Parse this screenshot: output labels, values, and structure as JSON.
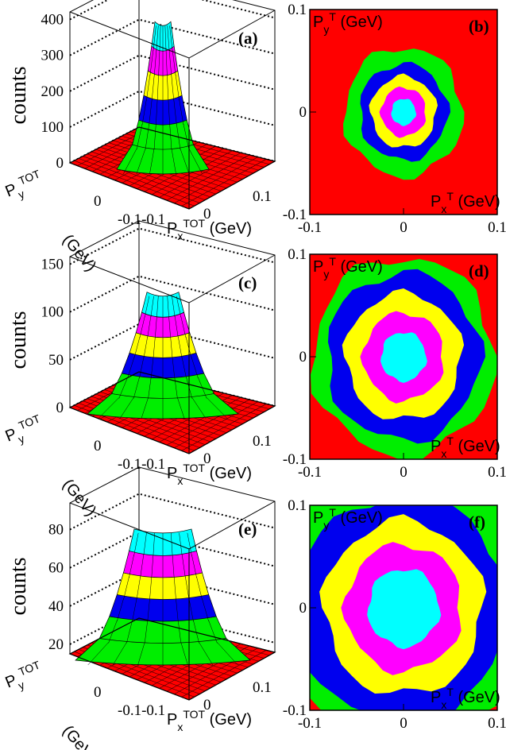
{
  "figure": {
    "colors": {
      "red": "#ff0000",
      "green": "#00ee00",
      "blue": "#0000ee",
      "yellow": "#ffff00",
      "magenta": "#ff00ff",
      "cyan": "#00ffff"
    }
  },
  "chart_data": [
    {
      "panel": "(a)",
      "type": "surface3d",
      "zlabel": "counts",
      "z_ticks": [
        "0",
        "100",
        "200",
        "300",
        "400"
      ],
      "zlim": [
        0,
        400
      ],
      "xlabel_base": "P",
      "xlabel_sub": "x",
      "xlabel_sup": "TOT",
      "xlabel_unit": "(GeV)",
      "ylabel_base": "P",
      "ylabel_sub": "y",
      "ylabel_sup": "TOT",
      "ylabel_unit": "(GeV)",
      "x_ticks": [
        "-0.1",
        "0",
        "0.1"
      ],
      "y_ticks": [
        "-0.1",
        "0",
        "0.1"
      ],
      "peak_counts": 420
    },
    {
      "panel": "(b)",
      "type": "heatmap",
      "xlim": [
        -0.1,
        0.1
      ],
      "ylim": [
        -0.1,
        0.1
      ],
      "x_ticks": [
        "-0.1",
        "0",
        "0.1"
      ],
      "y_ticks": [
        "-0.1",
        "0",
        "0.1"
      ],
      "ylabel_base": "P",
      "ylabel_sub": "y",
      "ylabel_sup": "T",
      "ylabel_unit": "(GeV)",
      "xlabel_base": "P",
      "xlabel_sub": "x",
      "xlabel_sup": "T",
      "xlabel_unit": "(GeV)",
      "contour_radii": [
        0.063,
        0.047,
        0.035,
        0.024,
        0.013
      ],
      "contour_colors": [
        "green",
        "blue",
        "yellow",
        "magenta",
        "cyan"
      ],
      "background": "red"
    },
    {
      "panel": "(c)",
      "type": "surface3d",
      "zlabel": "counts",
      "z_ticks": [
        "0",
        "50",
        "100",
        "150"
      ],
      "zlim": [
        0,
        150
      ],
      "xlabel_base": "P",
      "xlabel_sub": "x",
      "xlabel_sup": "TOT",
      "xlabel_unit": "(GeV)",
      "ylabel_base": "P",
      "ylabel_sub": "y",
      "ylabel_sup": "TOT",
      "ylabel_unit": "(GeV)",
      "x_ticks": [
        "-0.1",
        "0",
        "0.1"
      ],
      "y_ticks": [
        "-0.1",
        "0",
        "0.1"
      ],
      "peak_counts": 130
    },
    {
      "panel": "(d)",
      "type": "heatmap",
      "xlim": [
        -0.1,
        0.1
      ],
      "ylim": [
        -0.1,
        0.1
      ],
      "x_ticks": [
        "-0.1",
        "0",
        "0.1"
      ],
      "y_ticks": [
        "-0.1",
        "0",
        "0.1"
      ],
      "ylabel_base": "P",
      "ylabel_sub": "y",
      "ylabel_sup": "T",
      "ylabel_unit": "(GeV)",
      "xlabel_base": "P",
      "xlabel_sub": "x",
      "xlabel_sup": "T",
      "xlabel_unit": "(GeV)",
      "contour_radii": [
        0.097,
        0.082,
        0.062,
        0.043,
        0.024
      ],
      "contour_colors": [
        "green",
        "blue",
        "yellow",
        "magenta",
        "cyan"
      ],
      "background": "red"
    },
    {
      "panel": "(e)",
      "type": "surface3d",
      "zlabel": "counts",
      "z_ticks": [
        "20",
        "40",
        "60",
        "80"
      ],
      "zlim": [
        15,
        90
      ],
      "xlabel_base": "P",
      "xlabel_sub": "x",
      "xlabel_sup": "TOT",
      "xlabel_unit": "(GeV)",
      "ylabel_base": "P",
      "ylabel_sub": "y",
      "ylabel_sup": "TOT",
      "ylabel_unit": "(GeV)",
      "x_ticks": [
        "-0.1",
        "0",
        "0.1"
      ],
      "y_ticks": [
        "-0.1",
        "0",
        "0.1"
      ],
      "peak_counts": 85
    },
    {
      "panel": "(f)",
      "type": "heatmap",
      "xlim": [
        -0.1,
        0.1
      ],
      "ylim": [
        -0.1,
        0.1
      ],
      "x_ticks": [
        "-0.1",
        "0",
        "0.1"
      ],
      "y_ticks": [
        "-0.1",
        "0",
        "0.1"
      ],
      "ylabel_base": "P",
      "ylabel_sub": "y",
      "ylabel_sup": "T",
      "ylabel_unit": "(GeV)",
      "xlabel_base": "P",
      "xlabel_sub": "x",
      "xlabel_sup": "T",
      "xlabel_unit": "(GeV)",
      "contour_radii": [
        0.14,
        0.112,
        0.085,
        0.062,
        0.038
      ],
      "contour_colors": [
        "green",
        "blue",
        "yellow",
        "magenta",
        "cyan"
      ],
      "background": "red"
    }
  ]
}
